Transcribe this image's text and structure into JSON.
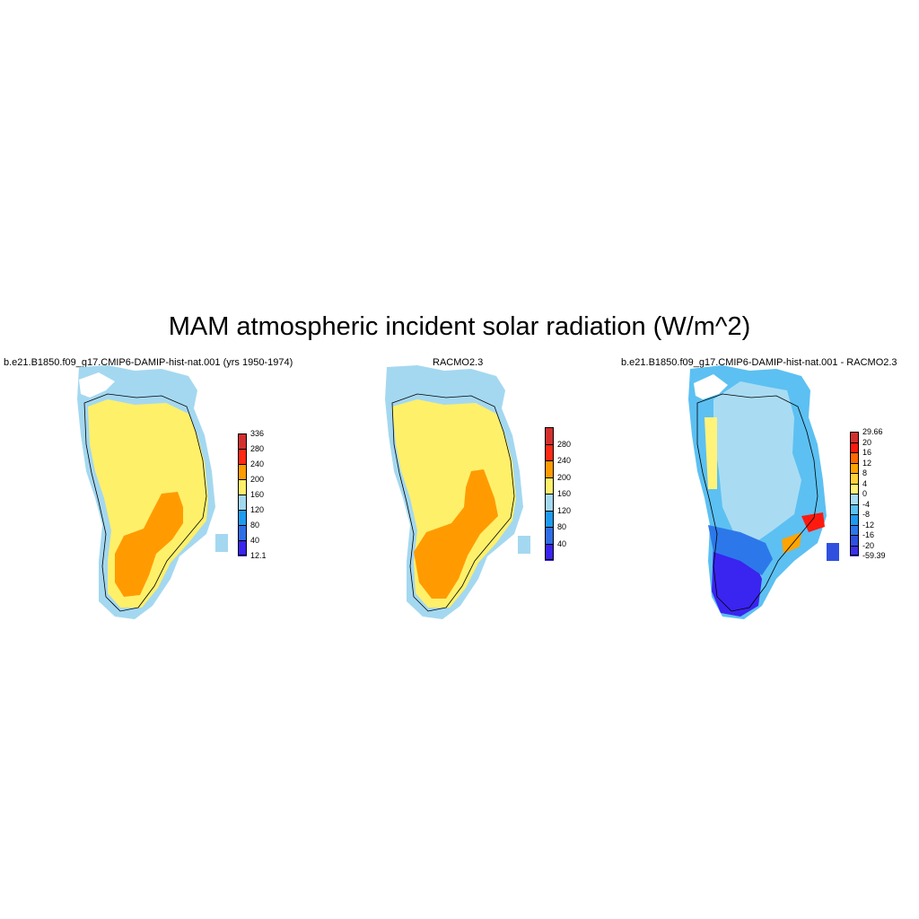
{
  "title": "MAM atmospheric incident solar radiation (W/m^2)",
  "panels": [
    {
      "title": "b.e21.B1850.f09_g17.CMIP6-DAMIP-hist-nat.001 (yrs 1950-1974)",
      "colorbar": {
        "labels": [
          "336",
          "280",
          "240",
          "200",
          "160",
          "120",
          "80",
          "40",
          "12.1"
        ],
        "colors": [
          "#d32f2f",
          "#ff2a14",
          "#ff9b00",
          "#fff06a",
          "#a4d8f0",
          "#1e9bf0",
          "#2f6ee6",
          "#3a24f0"
        ]
      }
    },
    {
      "title": "RACMO2.3",
      "colorbar": {
        "labels": [
          "280",
          "240",
          "200",
          "160",
          "120",
          "80",
          "40"
        ],
        "colors": [
          "#d32f2f",
          "#ff2a14",
          "#ff9b00",
          "#fff06a",
          "#a4d8f0",
          "#1e9bf0",
          "#2f6ee6",
          "#3a24f0"
        ]
      }
    },
    {
      "title": "b.e21.B1850.f09_g17.CMIP6-DAMIP-hist-nat.001 - RACMO2.3",
      "colorbar": {
        "labels": [
          "29.66",
          "20",
          "16",
          "12",
          "8",
          "4",
          "0",
          "-4",
          "-8",
          "-12",
          "-16",
          "-20",
          "-59.39"
        ],
        "colors": [
          "#d32f2f",
          "#ff1a10",
          "#ff6a00",
          "#ffa400",
          "#ffd23c",
          "#fff37a",
          "#a9dcf2",
          "#5cc0f2",
          "#1e9bf0",
          "#2c78ea",
          "#3050e0",
          "#3c30e8"
        ]
      }
    }
  ]
}
